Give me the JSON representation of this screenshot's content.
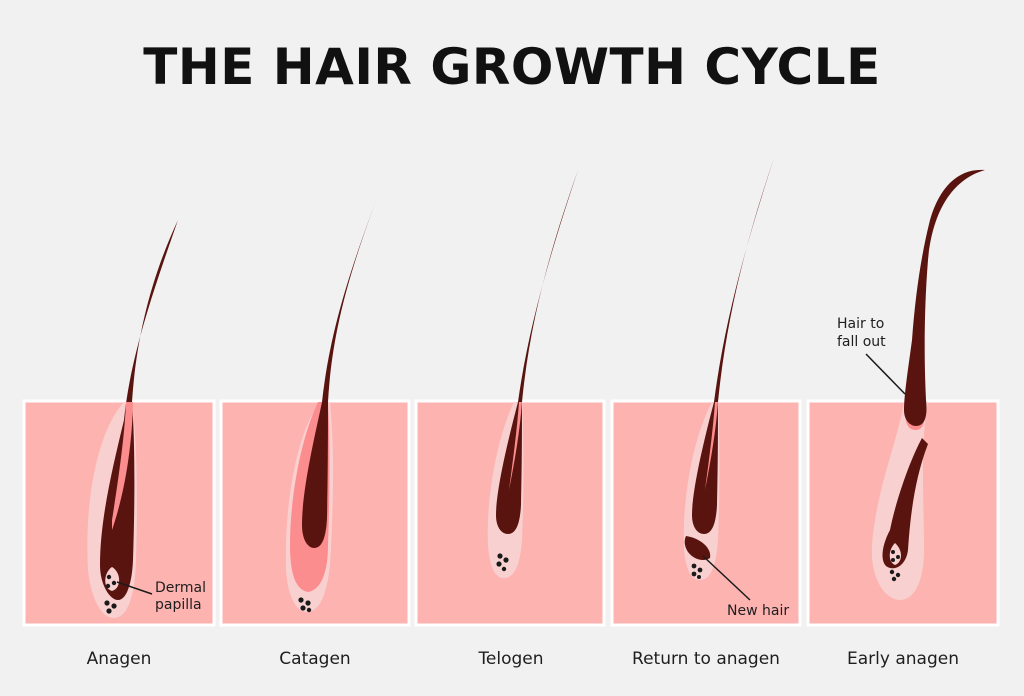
{
  "title": "THE HAIR GROWTH CYCLE",
  "colors": {
    "background": "#f2f1f1",
    "skin": "#fdb3b0",
    "skin_edge": "#ffffff",
    "sheath": "#f9d0d0",
    "inner_root": "#fb8d8e",
    "hair": "#5a1410",
    "papilla_dot": "#1a1a1a"
  },
  "stages": [
    {
      "label": "Anagen"
    },
    {
      "label": "Catagen"
    },
    {
      "label": "Telogen"
    },
    {
      "label": "Return to anagen"
    },
    {
      "label": "Early anagen"
    }
  ],
  "annotations": {
    "dermal_papilla": [
      "Dermal",
      "papilla"
    ],
    "new_hair": "New hair",
    "hair_to_fall_out": [
      "Hair to",
      "fall out"
    ]
  }
}
